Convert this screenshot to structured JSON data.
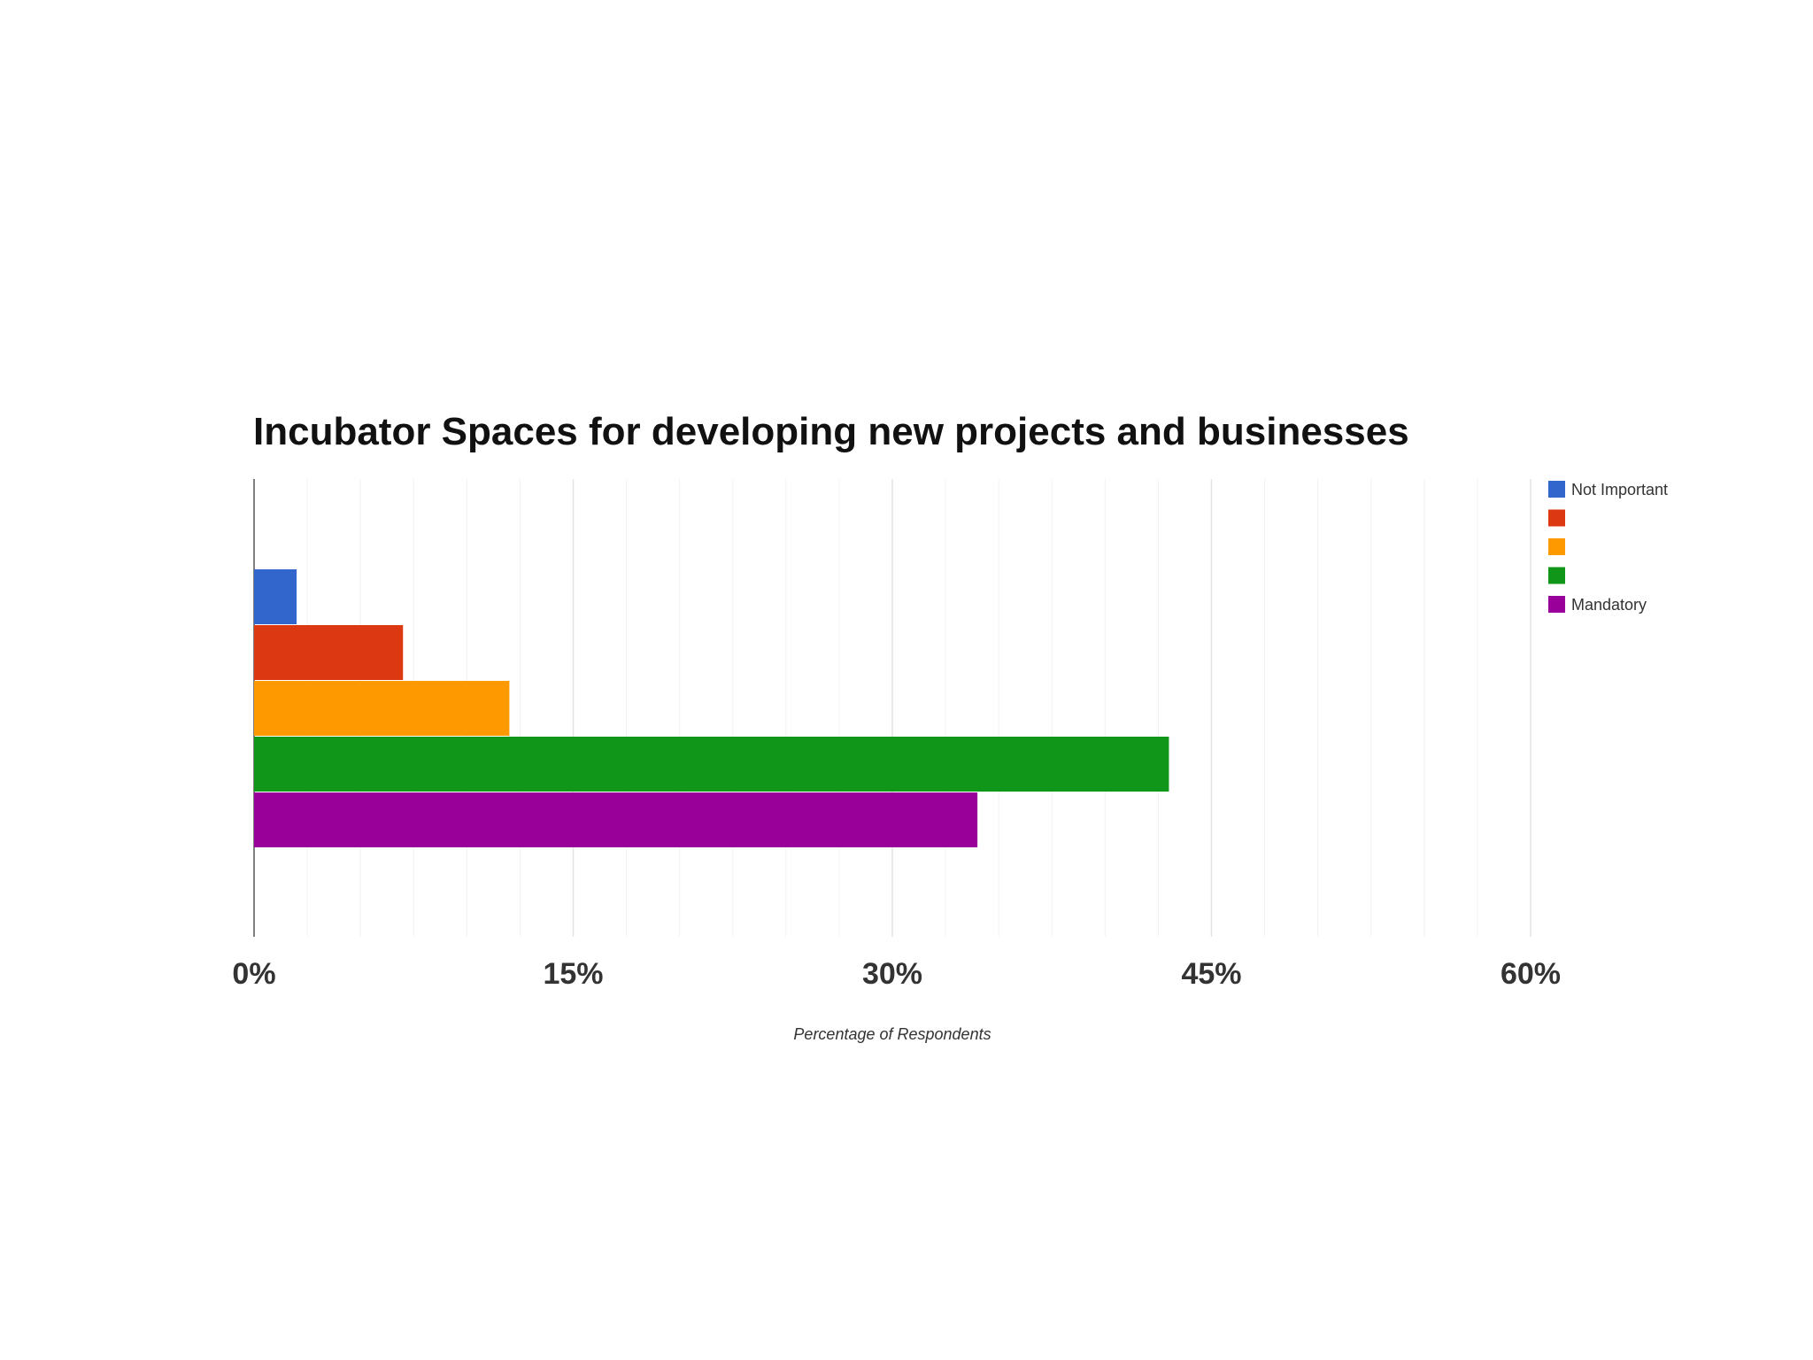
{
  "chart_data": {
    "type": "bar",
    "orientation": "horizontal",
    "title": "Incubator Spaces for developing new projects and businesses",
    "xlabel": "Percentage of Respondents",
    "ylabel": "",
    "xlim": [
      0,
      60
    ],
    "x_ticks": [
      "0%",
      "15%",
      "30%",
      "45%",
      "60%"
    ],
    "x_tick_values": [
      0,
      15,
      30,
      45,
      60
    ],
    "grid": "vertical",
    "legend": "top-right",
    "series": [
      {
        "name": "Not Important",
        "value": 2,
        "color": "#3366cc"
      },
      {
        "name": "",
        "value": 7,
        "color": "#dc3912"
      },
      {
        "name": "",
        "value": 12,
        "color": "#ff9900"
      },
      {
        "name": "",
        "value": 43,
        "color": "#109618"
      },
      {
        "name": "Mandatory",
        "value": 34,
        "color": "#990099"
      }
    ]
  }
}
